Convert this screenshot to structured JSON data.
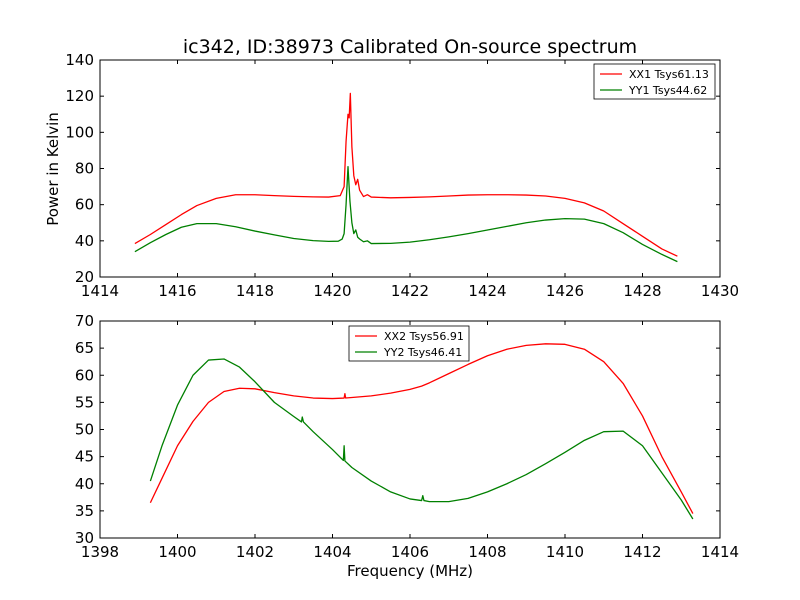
{
  "chart_data": [
    {
      "type": "line",
      "title": "ic342, ID:38973 Calibrated On-source spectrum",
      "xlabel": "",
      "ylabel": "Power in Kelvin",
      "xlim": [
        1414,
        1430
      ],
      "ylim": [
        20,
        140
      ],
      "xticks": [
        1414,
        1416,
        1418,
        1420,
        1422,
        1424,
        1426,
        1428,
        1430
      ],
      "yticks": [
        20,
        40,
        60,
        80,
        100,
        120,
        140
      ],
      "grid": false,
      "legend_position": "top-right",
      "series": [
        {
          "name": "XX1 Tsys61.13",
          "color": "#ff0000",
          "x": [
            1414.9,
            1415.3,
            1415.7,
            1416.1,
            1416.5,
            1417.0,
            1417.5,
            1418.0,
            1418.5,
            1419.0,
            1419.5,
            1419.9,
            1420.2,
            1420.3,
            1420.35,
            1420.4,
            1420.43,
            1420.46,
            1420.5,
            1420.55,
            1420.6,
            1420.65,
            1420.7,
            1420.8,
            1420.9,
            1421.0,
            1421.5,
            1422.0,
            1422.5,
            1423.0,
            1423.5,
            1424.0,
            1424.5,
            1425.0,
            1425.5,
            1426.0,
            1426.5,
            1427.0,
            1427.5,
            1428.0,
            1428.5,
            1428.9
          ],
          "y": [
            38.5,
            43.5,
            49,
            54.5,
            59.5,
            63.5,
            65.5,
            65.5,
            65,
            64.6,
            64.3,
            64.2,
            65.0,
            70,
            95,
            110,
            108,
            121.5,
            92,
            76,
            71,
            74,
            68,
            64.5,
            65.5,
            64.2,
            63.8,
            64.0,
            64.3,
            64.8,
            65.3,
            65.5,
            65.5,
            65.3,
            64.8,
            63.5,
            61.0,
            56.5,
            49.5,
            42.5,
            35.5,
            31.5
          ]
        },
        {
          "name": "YY1 Tsys44.62",
          "color": "#008000",
          "x": [
            1414.9,
            1415.3,
            1415.7,
            1416.1,
            1416.5,
            1417.0,
            1417.5,
            1418.0,
            1418.5,
            1419.0,
            1419.5,
            1419.9,
            1420.15,
            1420.25,
            1420.3,
            1420.35,
            1420.4,
            1420.45,
            1420.5,
            1420.55,
            1420.6,
            1420.65,
            1420.7,
            1420.8,
            1420.9,
            1421.0,
            1421.5,
            1422.0,
            1422.5,
            1423.0,
            1423.5,
            1424.0,
            1424.5,
            1425.0,
            1425.5,
            1426.0,
            1426.5,
            1427.0,
            1427.5,
            1428.0,
            1428.5,
            1428.9
          ],
          "y": [
            34,
            39,
            43.5,
            47.5,
            49.5,
            49.5,
            47.8,
            45.4,
            43.3,
            41.3,
            40.1,
            39.7,
            39.8,
            41,
            44,
            60,
            81,
            62,
            50,
            44,
            46,
            42,
            41,
            39.5,
            40.0,
            38.5,
            38.6,
            39.3,
            40.6,
            42.2,
            44.0,
            46.0,
            48.0,
            50.0,
            51.5,
            52.3,
            52.0,
            49.5,
            44.5,
            38.0,
            32.5,
            28.5
          ]
        }
      ]
    },
    {
      "type": "line",
      "title": "",
      "xlabel": "Frequency (MHz)",
      "ylabel": "",
      "xlim": [
        1398,
        1414
      ],
      "ylim": [
        30,
        70
      ],
      "xticks": [
        1398,
        1400,
        1402,
        1404,
        1406,
        1408,
        1410,
        1412,
        1414
      ],
      "yticks": [
        30,
        35,
        40,
        45,
        50,
        55,
        60,
        65,
        70
      ],
      "grid": false,
      "legend_position": "top-center",
      "series": [
        {
          "name": "XX2 Tsys56.91",
          "color": "#ff0000",
          "x": [
            1399.3,
            1399.6,
            1400.0,
            1400.4,
            1400.8,
            1401.2,
            1401.6,
            1402.0,
            1402.5,
            1403.0,
            1403.5,
            1404.0,
            1404.3,
            1404.32,
            1404.34,
            1404.5,
            1405.0,
            1405.5,
            1406.0,
            1406.3,
            1406.5,
            1407.0,
            1407.5,
            1408.0,
            1408.5,
            1409.0,
            1409.5,
            1410.0,
            1410.5,
            1411.0,
            1411.5,
            1412.0,
            1412.5,
            1413.0,
            1413.3
          ],
          "y": [
            36.5,
            41,
            47,
            51.5,
            55,
            57,
            57.6,
            57.5,
            56.8,
            56.2,
            55.8,
            55.7,
            55.8,
            56.6,
            55.8,
            55.9,
            56.2,
            56.7,
            57.4,
            58.0,
            58.6,
            60.3,
            62.0,
            63.6,
            64.8,
            65.5,
            65.8,
            65.7,
            64.8,
            62.5,
            58.5,
            52.5,
            45.0,
            38.5,
            34.5
          ]
        },
        {
          "name": "YY2 Tsys46.41",
          "color": "#008000",
          "x": [
            1399.3,
            1399.6,
            1400.0,
            1400.4,
            1400.8,
            1401.2,
            1401.6,
            1402.0,
            1402.5,
            1403.0,
            1403.2,
            1403.22,
            1403.25,
            1403.5,
            1404.0,
            1404.28,
            1404.3,
            1404.32,
            1404.5,
            1405.0,
            1405.5,
            1406.0,
            1406.3,
            1406.33,
            1406.36,
            1406.5,
            1407.0,
            1407.5,
            1408.0,
            1408.5,
            1409.0,
            1409.5,
            1410.0,
            1410.5,
            1411.0,
            1411.5,
            1412.0,
            1412.5,
            1413.0,
            1413.3
          ],
          "y": [
            40.5,
            47,
            54.5,
            60,
            62.8,
            63,
            61.5,
            58.8,
            55.0,
            52.4,
            51.4,
            52.3,
            51.4,
            49.6,
            46.3,
            44.3,
            47.0,
            44.2,
            43.0,
            40.5,
            38.5,
            37.2,
            36.9,
            37.8,
            36.9,
            36.7,
            36.7,
            37.3,
            38.5,
            40.0,
            41.7,
            43.7,
            45.8,
            48.0,
            49.6,
            49.7,
            47.0,
            42.0,
            37.0,
            33.5
          ]
        }
      ]
    }
  ]
}
